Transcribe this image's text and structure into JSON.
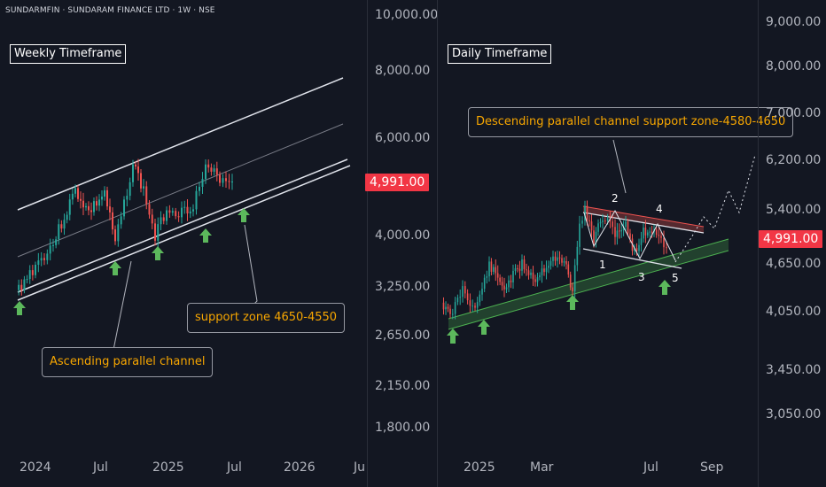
{
  "header": {
    "symbol_line": "SUNDARMFIN · SUNDARAM FINANCE LTD · 1W · NSE"
  },
  "left_chart": {
    "timeframe_label": "Weekly Timeframe",
    "price_axis": [
      "10,000.00",
      "8,000.00",
      "6,000.00",
      "4,000.00",
      "3,250.00",
      "2,650.00",
      "2,150.00",
      "1,800.00"
    ],
    "last_price": "4,991.00",
    "time_axis": [
      "2024",
      "Jul",
      "2025",
      "Jul",
      "2026",
      "Ju"
    ],
    "callout_channel": "Ascending parallel channel",
    "callout_support": "support zone 4650-4550"
  },
  "right_chart": {
    "timeframe_label": "Daily Timeframe",
    "price_axis": [
      "9,000.00",
      "8,000.00",
      "7,000.00",
      "6,200.00",
      "5,400.00",
      "4,650.00",
      "4,050.00",
      "3,450.00",
      "3,050.00"
    ],
    "last_price": "4,991.00",
    "time_axis": [
      "2025",
      "Mar",
      "Jul",
      "Sep"
    ],
    "callout_channel": "Descending parallel channel support zone-4580-4650",
    "wave_labels": [
      "1",
      "2",
      "3",
      "4",
      "5"
    ]
  },
  "colors": {
    "background": "#131722",
    "up": "#26a69a",
    "down": "#ef5350",
    "arrow": "#5cb85c",
    "accent": "#f23645",
    "callout_text": "#f7a600"
  }
}
